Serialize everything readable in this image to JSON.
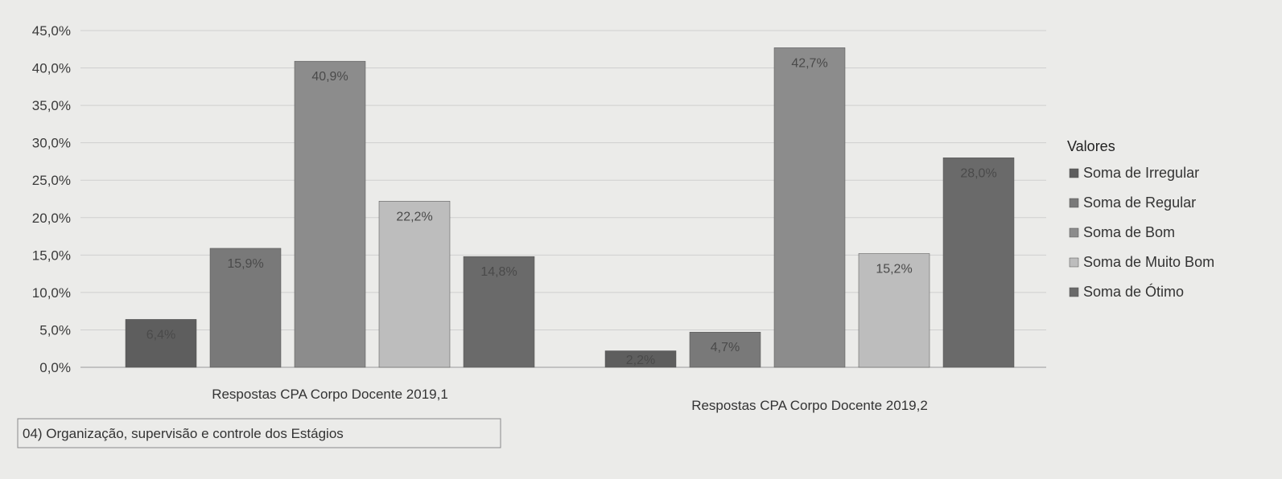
{
  "chart_data": {
    "type": "bar",
    "categories": [
      "Respostas CPA Corpo Docente 2019,1",
      "Respostas CPA  Corpo Docente 2019,2"
    ],
    "series": [
      {
        "name": "Soma de Irregular",
        "values": [
          6.4,
          2.2
        ],
        "labels": [
          "6,4%",
          "2,2%"
        ],
        "color": "#5e5e5e"
      },
      {
        "name": "Soma de Regular",
        "values": [
          15.9,
          4.7
        ],
        "labels": [
          "15,9%",
          "4,7%"
        ],
        "color": "#797979"
      },
      {
        "name": "Soma de Bom",
        "values": [
          40.9,
          42.7
        ],
        "labels": [
          "40,9%",
          "42,7%"
        ],
        "color": "#8c8c8c"
      },
      {
        "name": "Soma de Muito Bom",
        "values": [
          22.2,
          15.2
        ],
        "labels": [
          "22,2%",
          "15,2%"
        ],
        "color": "#bdbdbd"
      },
      {
        "name": "Soma de Ótimo",
        "values": [
          14.8,
          28.0
        ],
        "labels": [
          "14,8%",
          "28,0%"
        ],
        "color": "#6a6a6a"
      }
    ],
    "yticks": [
      "0,0%",
      "5,0%",
      "10,0%",
      "15,0%",
      "20,0%",
      "25,0%",
      "30,0%",
      "35,0%",
      "40,0%",
      "45,0%"
    ],
    "ylim": [
      0,
      45
    ],
    "grid": true,
    "legend_title": "Valores",
    "legend_position": "right",
    "filter_label": "04) Organização, supervisão e controle dos Estágios"
  }
}
